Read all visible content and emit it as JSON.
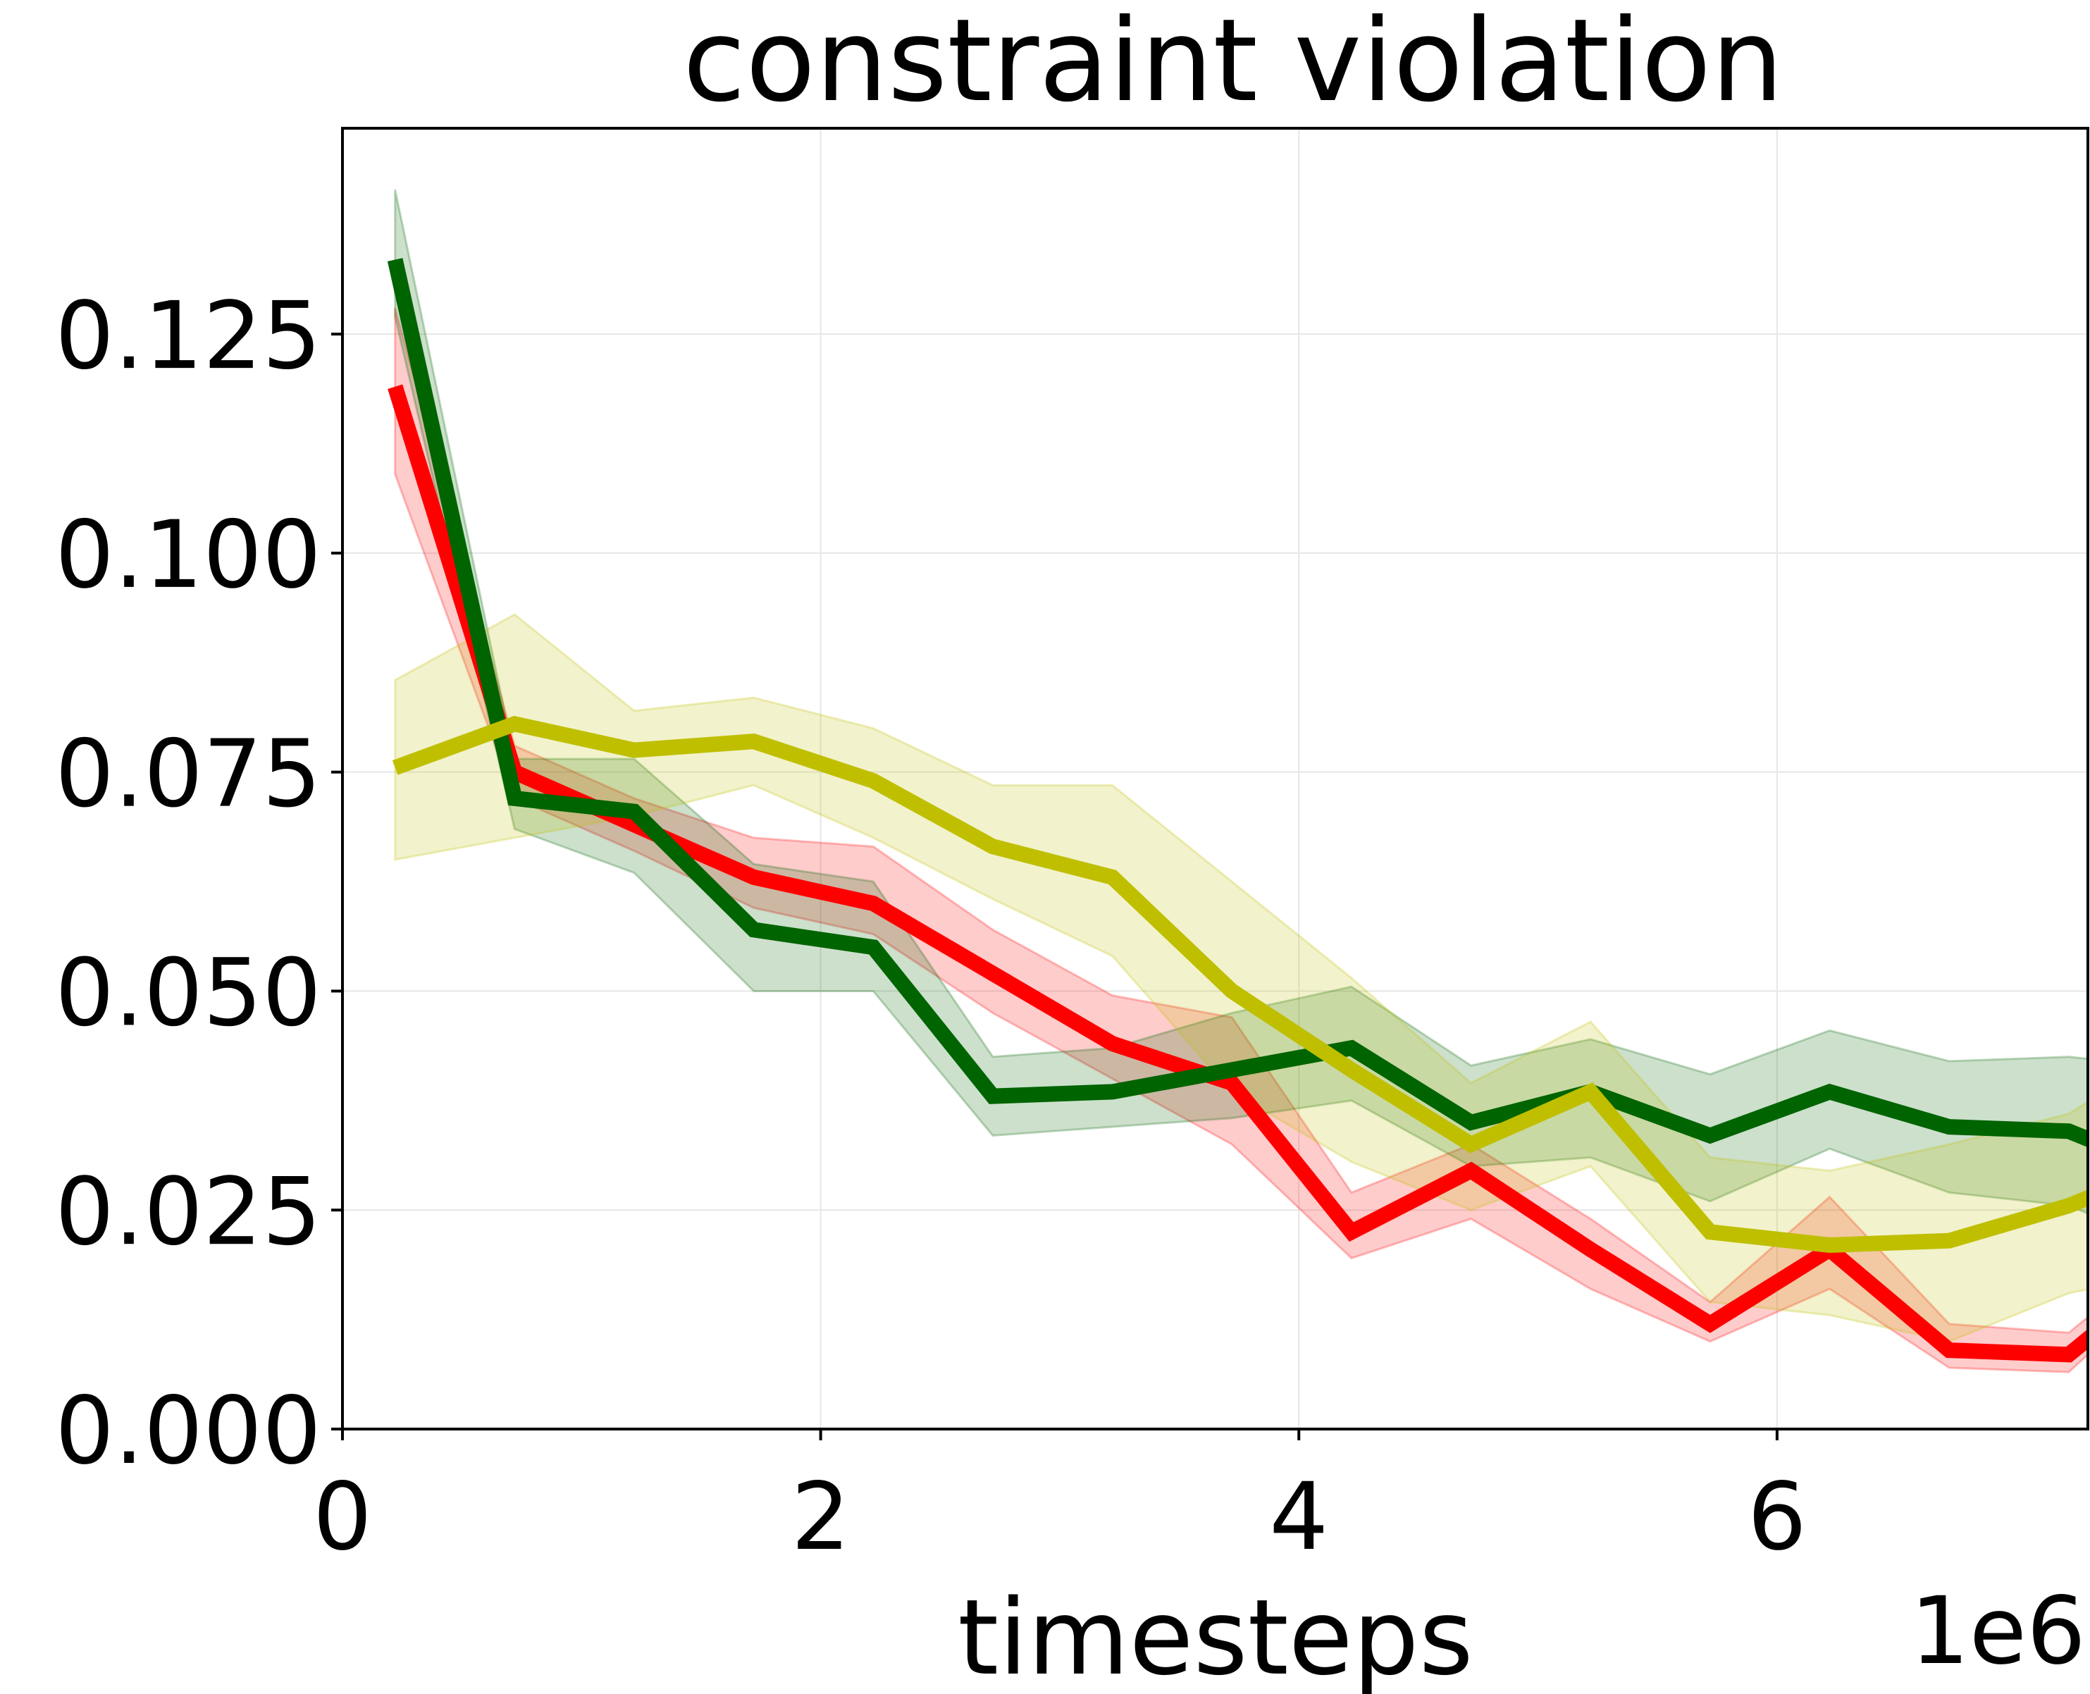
{
  "chart_data": {
    "type": "line",
    "title": "constraint violation",
    "xlabel": "timesteps",
    "ylabel": "",
    "x_offset_label": "1e6",
    "xlim": [
      0,
      7.3
    ],
    "ylim": [
      0,
      0.1485
    ],
    "x_ticks": [
      0,
      2,
      4,
      6
    ],
    "x_tick_labels": [
      "0",
      "2",
      "4",
      "6"
    ],
    "y_ticks": [
      0,
      0.025,
      0.05,
      0.075,
      0.1,
      0.125
    ],
    "y_tick_labels": [
      "0.000",
      "0.025",
      "0.050",
      "0.075",
      "0.100",
      "0.125"
    ],
    "grid": true,
    "x": [
      0.22,
      0.72,
      1.22,
      1.72,
      2.22,
      2.72,
      3.22,
      3.72,
      4.22,
      4.72,
      5.22,
      5.72,
      6.22,
      6.72,
      7.22,
      7.4
    ],
    "series": [
      {
        "color": "#ff0000",
        "values": [
          0.119,
          0.075,
          0.069,
          0.063,
          0.06,
          0.052,
          0.044,
          0.0395,
          0.0225,
          0.0295,
          0.0205,
          0.012,
          0.0205,
          0.009,
          0.0085,
          0.0125
        ],
        "lower": [
          0.109,
          0.072,
          0.066,
          0.0595,
          0.0565,
          0.0475,
          0.04,
          0.0325,
          0.0195,
          0.024,
          0.016,
          0.01,
          0.016,
          0.007,
          0.0065,
          0.011
        ],
        "upper": [
          0.128,
          0.078,
          0.072,
          0.0675,
          0.0665,
          0.057,
          0.0495,
          0.047,
          0.027,
          0.0325,
          0.024,
          0.0145,
          0.0265,
          0.012,
          0.011,
          0.015
        ]
      },
      {
        "color": "#006400",
        "values": [
          0.1335,
          0.072,
          0.0705,
          0.057,
          0.055,
          0.038,
          0.0385,
          0.041,
          0.0435,
          0.035,
          0.0385,
          0.0335,
          0.0385,
          0.0345,
          0.034,
          0.032
        ],
        "lower": [
          0.127,
          0.0685,
          0.0635,
          0.05,
          0.05,
          0.0335,
          0.0345,
          0.0355,
          0.0375,
          0.03,
          0.031,
          0.026,
          0.032,
          0.027,
          0.0255,
          0.0235
        ],
        "upper": [
          0.1415,
          0.0765,
          0.0765,
          0.0645,
          0.0625,
          0.0425,
          0.0435,
          0.0475,
          0.0505,
          0.0415,
          0.0445,
          0.0405,
          0.0455,
          0.042,
          0.0425,
          0.042
        ]
      },
      {
        "color": "#bfbf00",
        "values": [
          0.0755,
          0.0805,
          0.0775,
          0.0785,
          0.074,
          0.0665,
          0.063,
          0.05,
          0.041,
          0.0325,
          0.0385,
          0.0225,
          0.021,
          0.0215,
          0.0255,
          0.0275
        ],
        "lower": [
          0.065,
          0.0675,
          0.07,
          0.0735,
          0.0675,
          0.0605,
          0.054,
          0.0385,
          0.0305,
          0.025,
          0.03,
          0.0145,
          0.013,
          0.01,
          0.0155,
          0.0165
        ],
        "upper": [
          0.0855,
          0.093,
          0.082,
          0.0835,
          0.08,
          0.0735,
          0.0735,
          0.0625,
          0.0515,
          0.0395,
          0.0465,
          0.031,
          0.0295,
          0.0325,
          0.036,
          0.039
        ]
      }
    ]
  }
}
